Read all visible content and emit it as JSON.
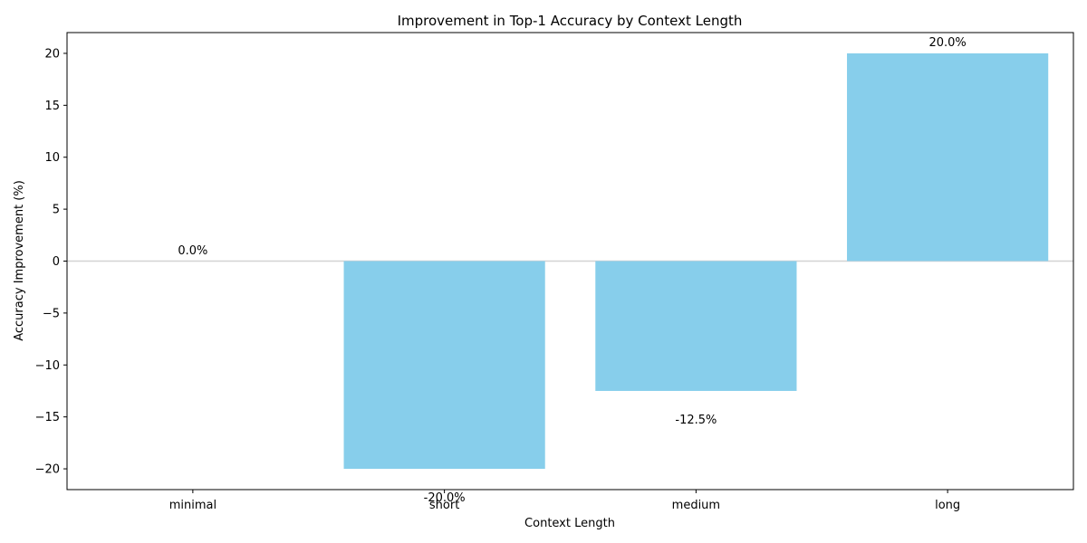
{
  "chart_data": {
    "type": "bar",
    "title": "Improvement in Top-1 Accuracy by Context Length",
    "xlabel": "Context Length",
    "ylabel": "Accuracy Improvement (%)",
    "categories": [
      "minimal",
      "short",
      "medium",
      "long"
    ],
    "values": [
      0.0,
      -20.0,
      -12.5,
      20.0
    ],
    "data_labels": [
      "0.0%",
      "-20.0%",
      "-12.5%",
      "20.0%"
    ],
    "ylim": [
      -22,
      22
    ],
    "yticks": [
      -20,
      -15,
      -10,
      -5,
      0,
      5,
      10,
      15,
      20
    ],
    "ytick_labels": [
      "−20",
      "−15",
      "−10",
      "−5",
      "0",
      "5",
      "10",
      "15",
      "20"
    ],
    "bar_color": "#87ceeb",
    "zero_line_color": "#d3d3d3",
    "grid": false,
    "legend": "none"
  }
}
